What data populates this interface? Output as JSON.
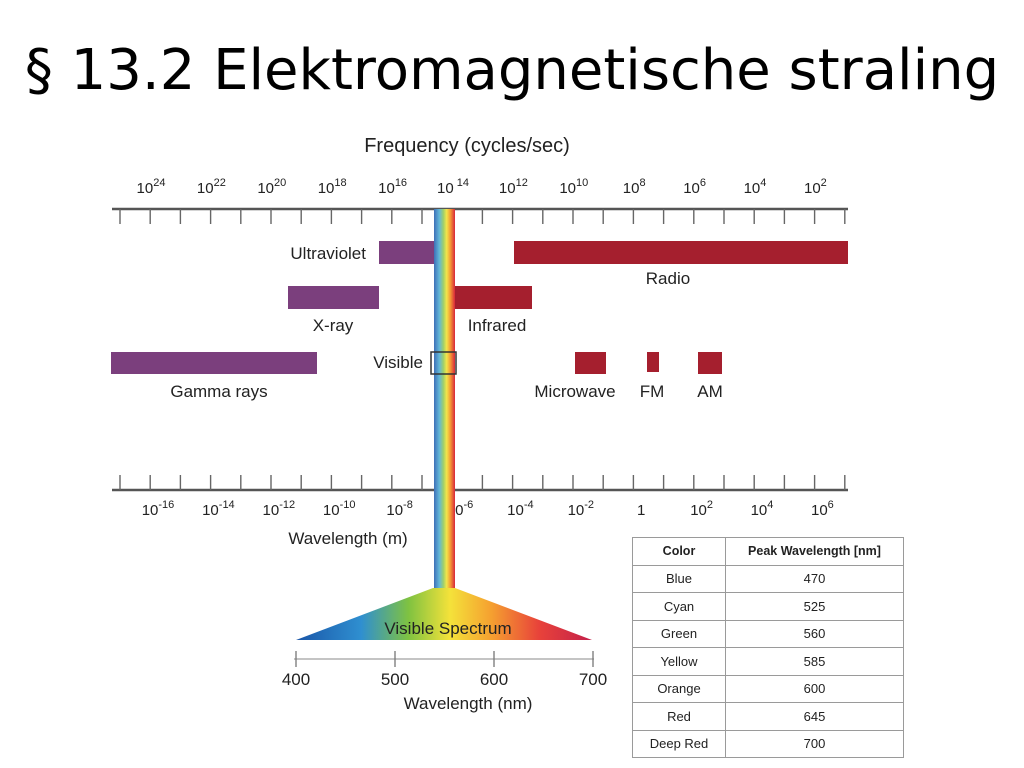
{
  "slide": {
    "title": "§ 13.2 Elektromagnetische straling"
  },
  "diagram": {
    "frequency_axis_label": "Frequency (cycles/sec)",
    "frequency_ticks": [
      {
        "base": "10",
        "exp": "24"
      },
      {
        "base": "10",
        "exp": "22"
      },
      {
        "base": "10",
        "exp": "20"
      },
      {
        "base": "10",
        "exp": "18"
      },
      {
        "base": "10",
        "exp": "16"
      },
      {
        "base": "10",
        "exp": " 14"
      },
      {
        "base": "10",
        "exp": "12"
      },
      {
        "base": "10",
        "exp": "10"
      },
      {
        "base": "10",
        "exp": "8"
      },
      {
        "base": "10",
        "exp": "6"
      },
      {
        "base": "10",
        "exp": "4"
      },
      {
        "base": "10",
        "exp": "2"
      }
    ],
    "wavelength_axis_label": "Wavelength (m)",
    "wavelength_ticks": [
      {
        "base": "10",
        "exp": "-16"
      },
      {
        "base": "10",
        "exp": "-14"
      },
      {
        "base": "10",
        "exp": "-12"
      },
      {
        "base": "10",
        "exp": "-10"
      },
      {
        "base": "10",
        "exp": "-8"
      },
      {
        "base": "10",
        "exp": "-6"
      },
      {
        "base": "10",
        "exp": "-4"
      },
      {
        "base": "10",
        "exp": "-2"
      },
      {
        "base": "1",
        "exp": ""
      },
      {
        "base": "10",
        "exp": "2"
      },
      {
        "base": "10",
        "exp": "4"
      },
      {
        "base": "10",
        "exp": "6"
      }
    ],
    "bands": {
      "ultraviolet": "Ultraviolet",
      "radio": "Radio",
      "xray": "X-ray",
      "infrared": "Infrared",
      "visible": "Visible",
      "gamma": "Gamma rays",
      "microwave": "Microwave",
      "fm": "FM",
      "am": "AM"
    },
    "visible_spectrum_label": "Visible Spectrum",
    "nm_axis_label": "Wavelength (nm)",
    "nm_ticks": [
      "400",
      "500",
      "600",
      "700"
    ],
    "colors": {
      "ionizing_band": "#7b3f7d",
      "nonionizing_band": "#a51f2e",
      "axis": "#555555"
    }
  },
  "peak_table": {
    "headers": [
      "Color",
      "Peak Wavelength [nm]"
    ],
    "rows": [
      [
        "Blue",
        "470"
      ],
      [
        "Cyan",
        "525"
      ],
      [
        "Green",
        "560"
      ],
      [
        "Yellow",
        "585"
      ],
      [
        "Orange",
        "600"
      ],
      [
        "Red",
        "645"
      ],
      [
        "Deep Red",
        "700"
      ]
    ]
  }
}
